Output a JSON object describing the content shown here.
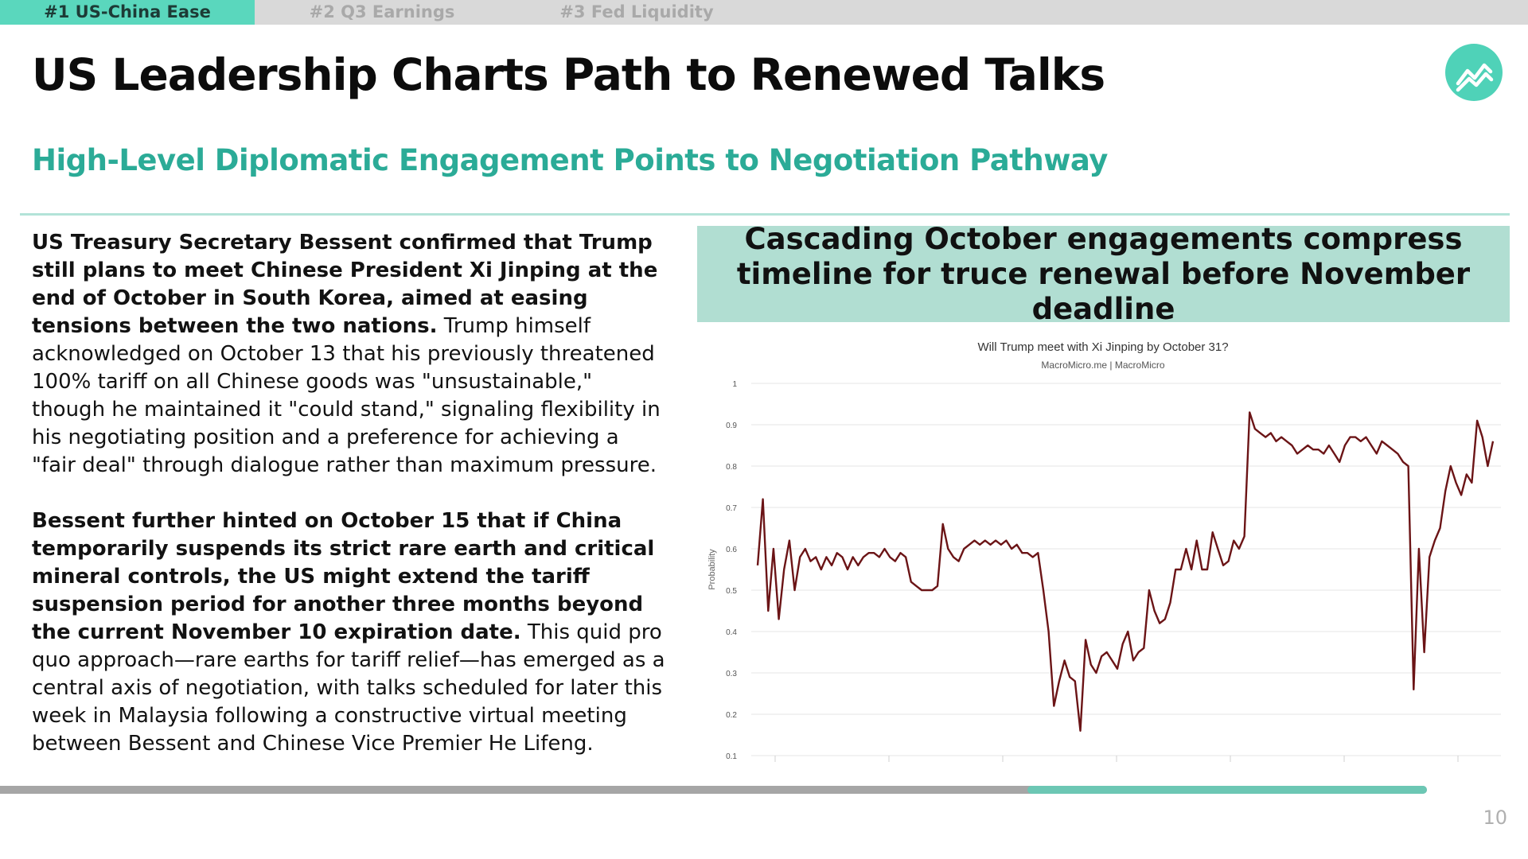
{
  "tabs": [
    {
      "label": "#1 US-China Ease",
      "active": true
    },
    {
      "label": "#2 Q3 Earnings",
      "active": false
    },
    {
      "label": "#3 Fed Liquidity",
      "active": false
    }
  ],
  "header": {
    "title": "US Leadership Charts Path to Renewed Talks",
    "subtitle": "High-Level Diplomatic Engagement Points to Negotiation Pathway",
    "logo_icon": "trend-chart-logo-icon"
  },
  "body": {
    "p1_bold": "US Treasury Secretary Bessent confirmed that Trump still plans to meet Chinese President Xi Jinping at the end of October in South Korea, aimed at easing tensions between the two nations.",
    "p1_rest": " Trump himself acknowledged on October 13 that his previously threatened 100% tariff on all Chinese goods was \"unsustainable,\" though he maintained it \"could stand,\" signaling flexibility in his negotiating position and a preference for achieving a \"fair deal\" through dialogue rather than maximum pressure.",
    "p2_bold": "Bessent further hinted on October 15 that if China temporarily suspends its strict rare earth and critical mineral controls, the US might extend the tariff suspension period for another three months beyond the current November 10 expiration date.",
    "p2_rest": " This quid pro quo approach—rare earths for tariff relief—has emerged as a central axis of negotiation, with talks scheduled for later this week in Malaysia following a constructive virtual meeting between Bessent and Chinese Vice Premier He Lifeng."
  },
  "callout": {
    "text": "Cascading October engagements compress timeline for truce renewal before November deadline"
  },
  "chart_data": {
    "type": "line",
    "title": "Will Trump meet with Xi Jinping by October 31?",
    "subtitle": "MacroMicro.me | MacroMicro",
    "xlabel": "",
    "ylabel": "Probability",
    "ylim": [
      0.1,
      1.0
    ],
    "yticks": [
      "0.1",
      "0.2",
      "0.3",
      "0.4",
      "0.5",
      "0.6",
      "0.7",
      "0.8",
      "0.9",
      "1"
    ],
    "grid": true,
    "series": [
      {
        "color": "#6b1416",
        "values": [
          0.56,
          0.72,
          0.45,
          0.6,
          0.43,
          0.55,
          0.62,
          0.5,
          0.58,
          0.6,
          0.57,
          0.58,
          0.55,
          0.58,
          0.56,
          0.59,
          0.58,
          0.55,
          0.58,
          0.56,
          0.58,
          0.59,
          0.59,
          0.58,
          0.6,
          0.58,
          0.57,
          0.59,
          0.58,
          0.52,
          0.51,
          0.5,
          0.5,
          0.5,
          0.51,
          0.66,
          0.6,
          0.58,
          0.57,
          0.6,
          0.61,
          0.62,
          0.61,
          0.62,
          0.61,
          0.62,
          0.61,
          0.62,
          0.6,
          0.61,
          0.59,
          0.59,
          0.58,
          0.59,
          0.5,
          0.4,
          0.22,
          0.28,
          0.33,
          0.29,
          0.28,
          0.16,
          0.38,
          0.32,
          0.3,
          0.34,
          0.35,
          0.33,
          0.31,
          0.37,
          0.4,
          0.33,
          0.35,
          0.36,
          0.5,
          0.45,
          0.42,
          0.43,
          0.47,
          0.55,
          0.55,
          0.6,
          0.55,
          0.62,
          0.55,
          0.55,
          0.64,
          0.6,
          0.56,
          0.57,
          0.62,
          0.6,
          0.63,
          0.93,
          0.89,
          0.88,
          0.87,
          0.88,
          0.86,
          0.87,
          0.86,
          0.85,
          0.83,
          0.84,
          0.85,
          0.84,
          0.84,
          0.83,
          0.85,
          0.83,
          0.81,
          0.85,
          0.87,
          0.87,
          0.86,
          0.87,
          0.85,
          0.83,
          0.86,
          0.85,
          0.84,
          0.83,
          0.81,
          0.8,
          0.26,
          0.6,
          0.35,
          0.58,
          0.62,
          0.65,
          0.74,
          0.8,
          0.76,
          0.73,
          0.78,
          0.76,
          0.91,
          0.87,
          0.8,
          0.86
        ]
      }
    ]
  },
  "page_number": "10",
  "progress": {
    "value": 0.28
  }
}
